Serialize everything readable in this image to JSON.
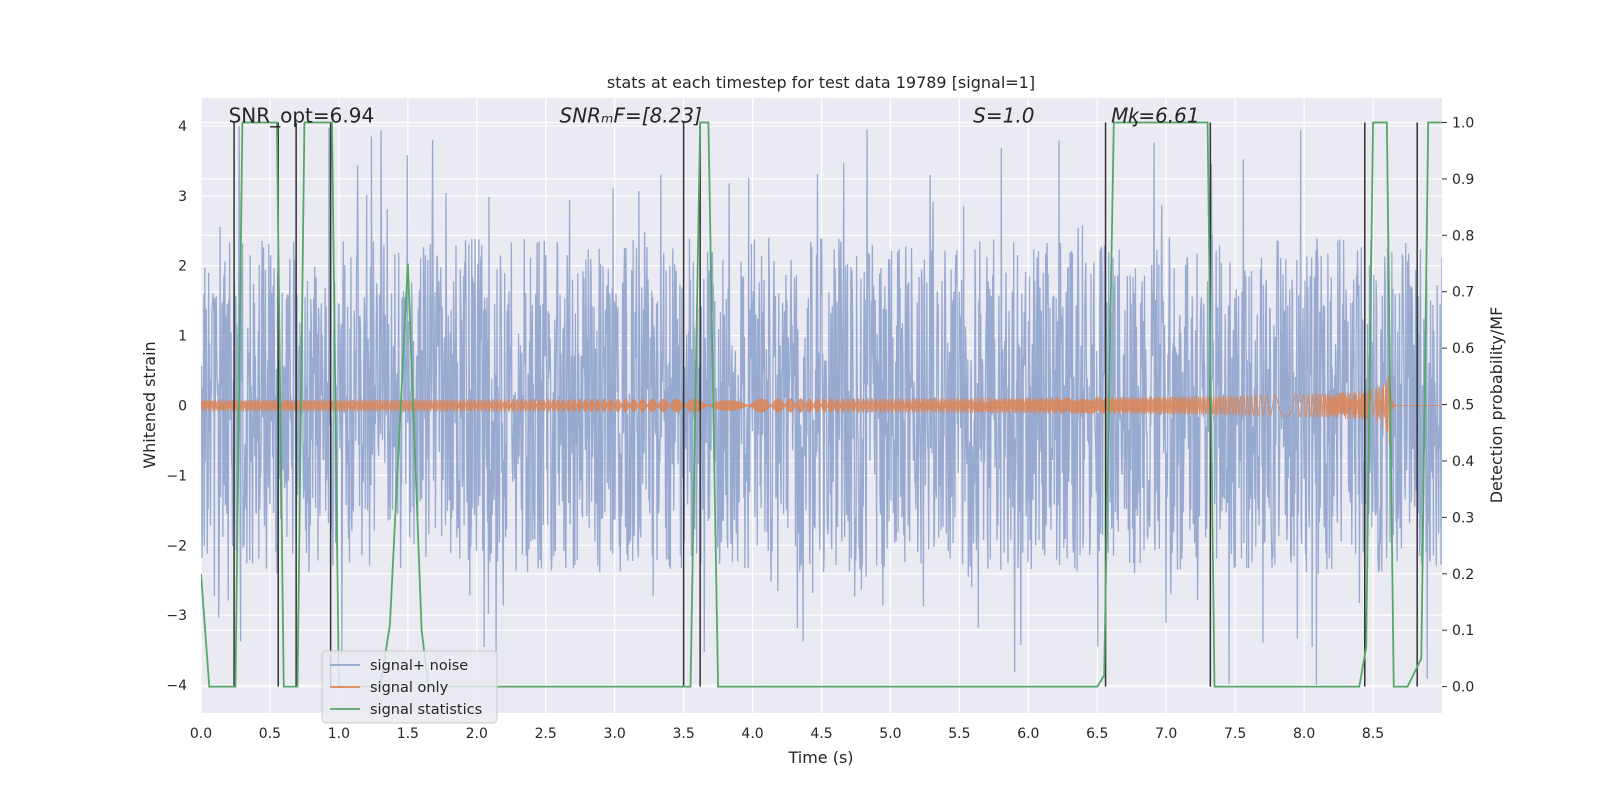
{
  "chart_data": {
    "type": "line",
    "title": "stats at each timestep for test data 19789 [signal=1]",
    "xlabel": "Time (s)",
    "ylabel": "Whitened strain",
    "y2label": "Detection probability/MF",
    "xlim": [
      0,
      9
    ],
    "ylim": [
      -4.4,
      4.4
    ],
    "y2lim": [
      -0.04676,
      1.0434
    ],
    "grid": true,
    "x_ticks": [
      0.0,
      0.5,
      1.0,
      1.5,
      2.0,
      2.5,
      3.0,
      3.5,
      4.0,
      4.5,
      5.0,
      5.5,
      6.0,
      6.5,
      7.0,
      7.5,
      8.0,
      8.5
    ],
    "x_tick_labels": [
      "0.0",
      "0.5",
      "1.0",
      "1.5",
      "2.0",
      "2.5",
      "3.0",
      "3.5",
      "4.0",
      "4.5",
      "5.0",
      "5.5",
      "6.0",
      "6.5",
      "7.0",
      "7.5",
      "8.0",
      "8.5"
    ],
    "y_ticks": [
      -4,
      -3,
      -2,
      -1,
      0,
      1,
      2,
      3,
      4
    ],
    "y_tick_labels": [
      "−4",
      "−3",
      "−2",
      "−1",
      "0",
      "1",
      "2",
      "3",
      "4"
    ],
    "y2_ticks": [
      0.0,
      0.1,
      0.2,
      0.3,
      0.4,
      0.5,
      0.6,
      0.7,
      0.8,
      0.9,
      1.0
    ],
    "y2_tick_labels": [
      "0.0",
      "0.1",
      "0.2",
      "0.3",
      "0.4",
      "0.5",
      "0.6",
      "0.7",
      "0.8",
      "0.9",
      "1.0"
    ],
    "annotations": [
      {
        "id": "snr-opt",
        "text": "SNR_opt=6.94",
        "x": 0.2,
        "y": 4.05
      },
      {
        "id": "snr-mf",
        "text": "SNRₘF=[8.23]",
        "x": 2.6,
        "y": 4.05
      },
      {
        "id": "s",
        "text": "S=1.0",
        "x": 5.6,
        "y": 4.05
      },
      {
        "id": "mc",
        "text": "Mᶄ=6.61",
        "x": 6.6,
        "y": 4.05
      }
    ],
    "legend_position": "lower-left",
    "series": [
      {
        "id": "noise",
        "name": "signal+ noise",
        "color": "#8fa3cc",
        "kind": "noise",
        "envelope_typical": 1.9,
        "envelope_max": 4.0
      },
      {
        "id": "signal",
        "name": "signal only",
        "color": "#dd8452",
        "kind": "chirp",
        "t_merger": 8.62,
        "peak_amplitude": 0.62
      },
      {
        "id": "stats",
        "name": "signal statistics",
        "color": "#55a868",
        "axis": "right",
        "x": [
          0.0,
          0.06,
          0.25,
          0.3,
          0.55,
          0.6,
          0.7,
          0.75,
          0.95,
          1.0,
          1.3,
          1.37,
          1.5,
          1.6,
          1.65,
          2.5,
          3.5,
          3.55,
          3.62,
          3.68,
          3.75,
          3.8,
          4.0,
          4.2,
          4.3,
          6.5,
          6.55,
          6.62,
          6.7,
          7.3,
          7.35,
          7.45,
          8.4,
          8.45,
          8.5,
          8.6,
          8.65,
          8.75,
          8.85,
          8.9,
          9.0
        ],
        "values": [
          0.2,
          0.0,
          0.0,
          1.0,
          1.0,
          0.0,
          0.0,
          1.0,
          1.0,
          0.0,
          0.0,
          0.11,
          0.75,
          0.1,
          0.0,
          0.0,
          0.0,
          0.0,
          1.0,
          1.0,
          0.0,
          0.0,
          0.0,
          0.0,
          0.0,
          0.0,
          0.02,
          1.0,
          1.0,
          1.0,
          0.0,
          0.0,
          0.0,
          0.07,
          1.0,
          1.0,
          0.0,
          0.0,
          0.05,
          1.0,
          1.0
        ]
      }
    ],
    "vertical_lines_x": [
      0.24,
      0.56,
      0.69,
      0.94,
      3.5,
      3.62,
      6.56,
      7.32,
      8.44,
      8.82
    ],
    "vertical_lines_color": "#333333"
  }
}
